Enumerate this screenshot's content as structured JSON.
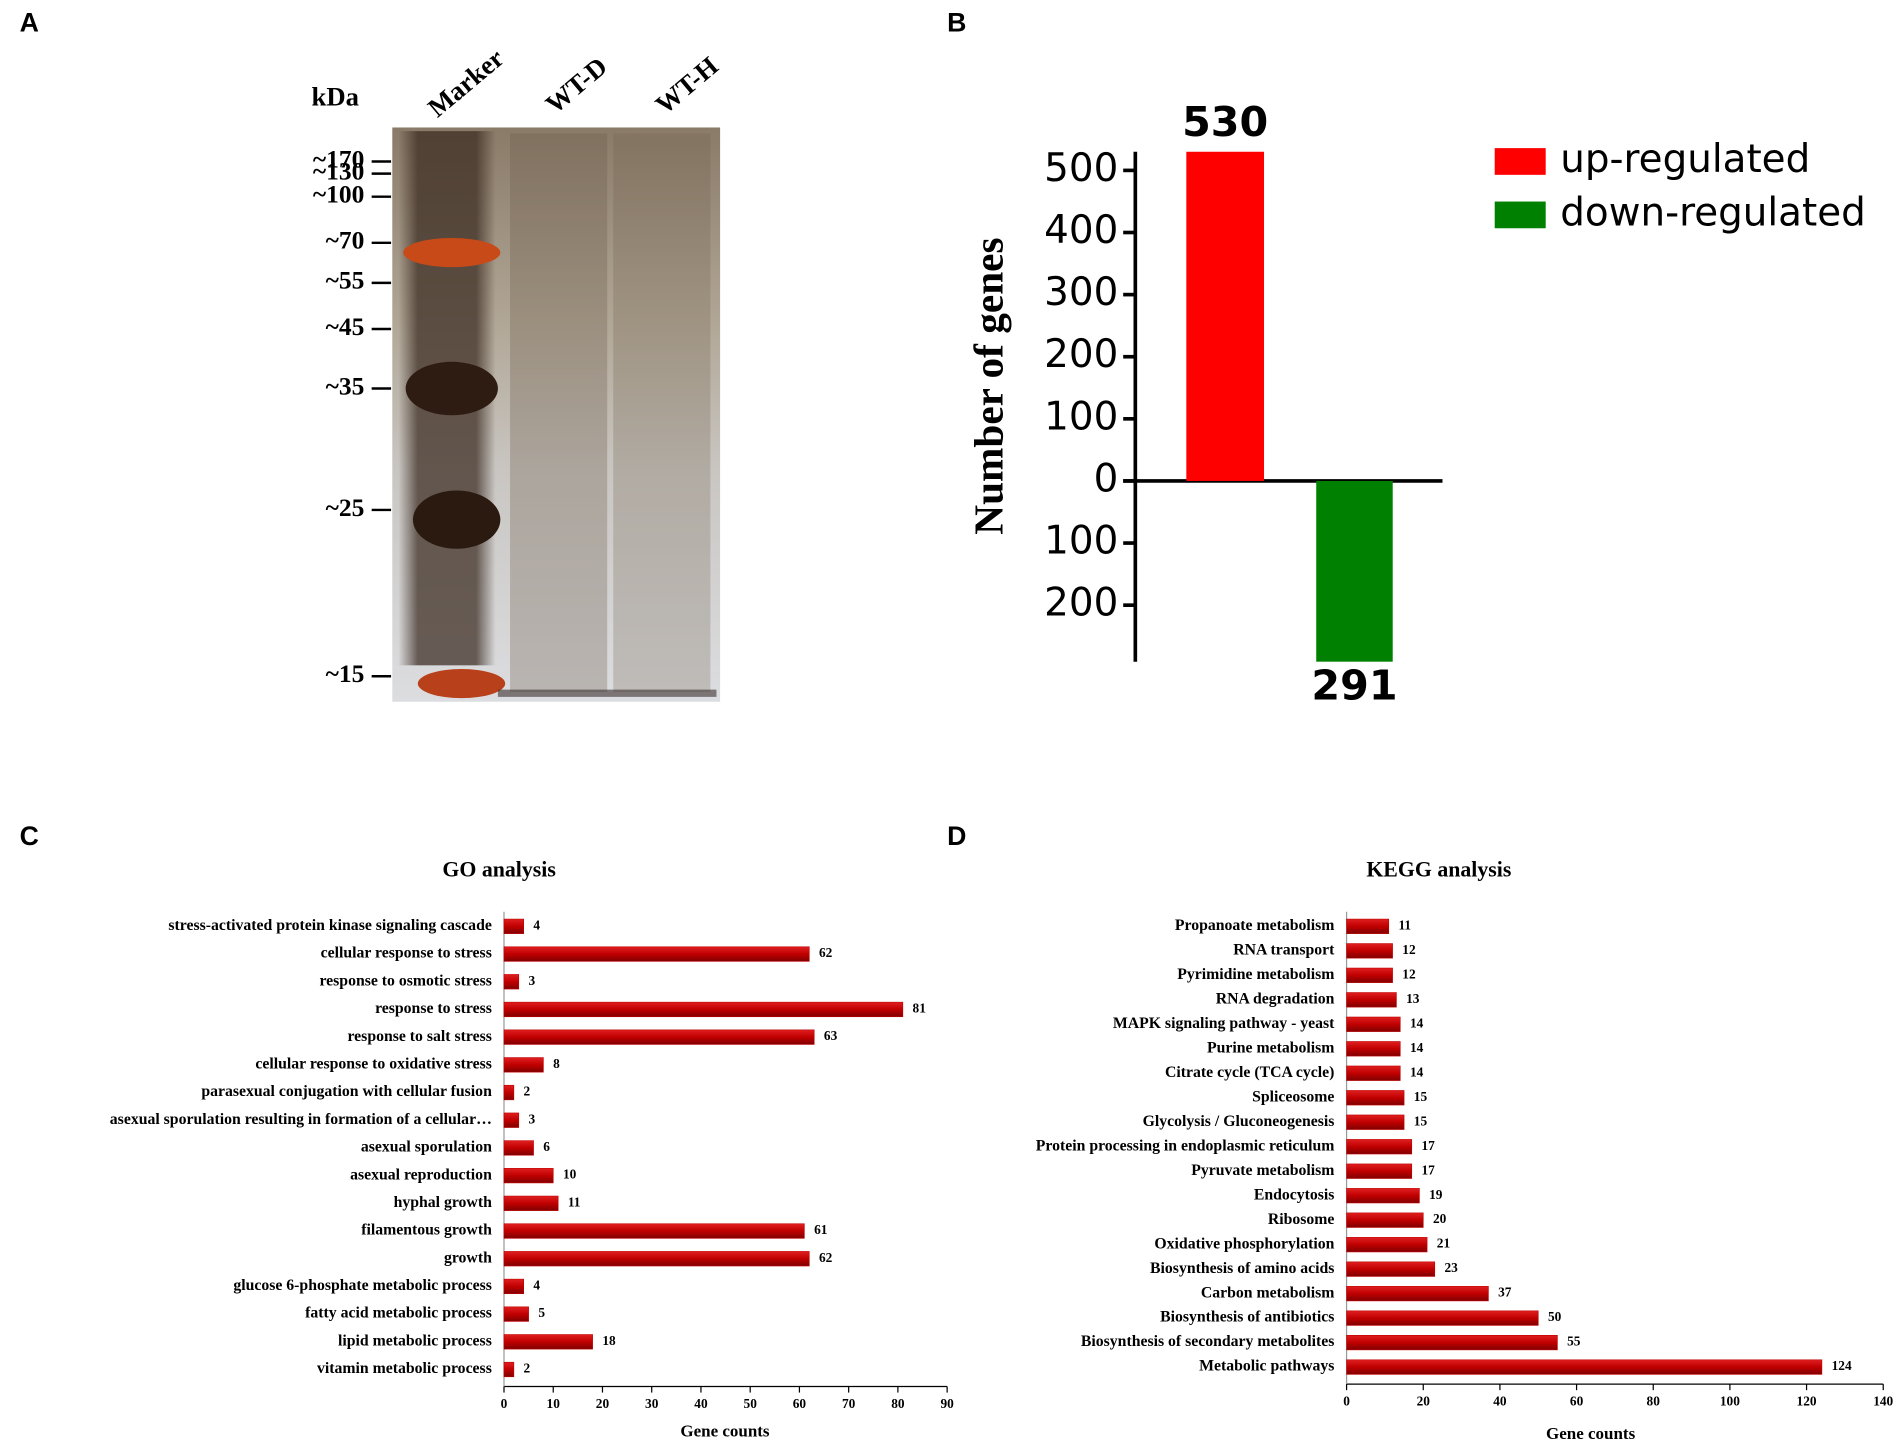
{
  "panel_labels": [
    "A",
    "B",
    "C",
    "D"
  ],
  "gel": {
    "unit_label": "kDa",
    "lanes": [
      "Marker",
      "WT-D",
      "WT-H"
    ],
    "markers": [
      "~170",
      "~130",
      "~100",
      "~70",
      "~55",
      "~45",
      "~35",
      "~25",
      "~15"
    ]
  },
  "chart_data": [
    {
      "type": "bar",
      "ylabel": "Number of genes",
      "series": [
        {
          "name": "up-regulated",
          "color": "#ff0000",
          "values": [
            530
          ]
        },
        {
          "name": "down-regulated",
          "color": "#008000",
          "values": [
            -291
          ],
          "value_labels": [
            "291"
          ]
        }
      ],
      "ylim": [
        -291,
        530
      ],
      "yticks": [
        500,
        400,
        300,
        200,
        100,
        0,
        {
          "value": -100,
          "label": "100"
        },
        {
          "value": -200,
          "label": "200"
        }
      ],
      "legend": "top-right"
    },
    {
      "type": "bar",
      "orientation": "horizontal",
      "title": "GO analysis",
      "xlabel": "Gene counts",
      "color": "#c00000",
      "categories": [
        "stress-activated protein kinase signaling cascade",
        "cellular response to stress",
        "response to osmotic stress",
        "response to stress",
        "response to salt stress",
        "cellular response to oxidative stress",
        "parasexual conjugation with cellular fusion",
        "asexual sporulation resulting in formation of a cellular…",
        "asexual sporulation",
        "asexual reproduction",
        "hyphal growth",
        "filamentous growth",
        "growth",
        "glucose 6-phosphate metabolic process",
        "fatty acid metabolic process",
        "lipid metabolic process",
        "vitamin metabolic process"
      ],
      "values": [
        4,
        62,
        3,
        81,
        63,
        8,
        2,
        3,
        6,
        10,
        11,
        61,
        62,
        4,
        5,
        18,
        2
      ],
      "xlim": [
        0,
        90
      ],
      "xticks": [
        0,
        10,
        20,
        30,
        40,
        50,
        60,
        70,
        80,
        90
      ]
    },
    {
      "type": "bar",
      "orientation": "horizontal",
      "title": "KEGG analysis",
      "xlabel": "Gene counts",
      "color": "#c00000",
      "categories": [
        "Propanoate metabolism",
        "RNA transport",
        "Pyrimidine metabolism",
        "RNA degradation",
        "MAPK signaling pathway - yeast",
        "Purine metabolism",
        "Citrate cycle (TCA cycle)",
        "Spliceosome",
        "Glycolysis / Gluconeogenesis",
        "Protein processing in endoplasmic reticulum",
        "Pyruvate metabolism",
        "Endocytosis",
        "Ribosome",
        "Oxidative phosphorylation",
        "Biosynthesis of amino acids",
        "Carbon metabolism",
        "Biosynthesis of antibiotics",
        "Biosynthesis of secondary metabolites",
        "Metabolic pathways"
      ],
      "values": [
        11,
        12,
        12,
        13,
        14,
        14,
        14,
        15,
        15,
        17,
        17,
        19,
        20,
        21,
        23,
        37,
        50,
        55,
        124
      ],
      "xlim": [
        0,
        140
      ],
      "xticks": [
        0,
        20,
        40,
        60,
        80,
        100,
        120,
        140
      ]
    }
  ]
}
